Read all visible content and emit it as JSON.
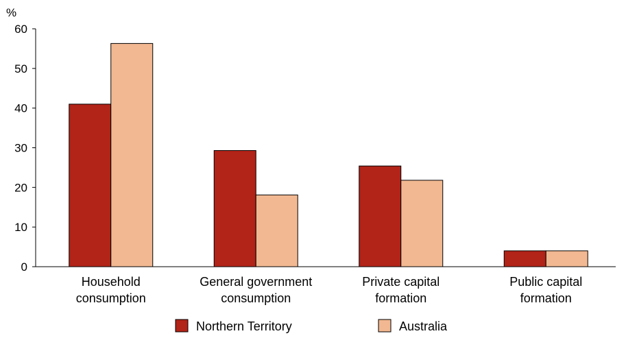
{
  "chart_data": {
    "type": "bar",
    "ylabel": "%",
    "ylim": [
      0,
      60
    ],
    "yticks": [
      0,
      10,
      20,
      30,
      40,
      50,
      60
    ],
    "categories": [
      [
        "Household",
        "consumption"
      ],
      [
        "General government",
        "consumption"
      ],
      [
        "Private capital",
        "formation"
      ],
      [
        "Public capital",
        "formation"
      ]
    ],
    "series": [
      {
        "name": "Northern Territory",
        "color": "#b22318",
        "values": [
          41,
          29.3,
          25.4,
          4
        ]
      },
      {
        "name": "Australia",
        "color": "#f2b891",
        "values": [
          56.3,
          18.1,
          21.8,
          4
        ]
      }
    ],
    "grid": false,
    "legend_position": "bottom"
  }
}
